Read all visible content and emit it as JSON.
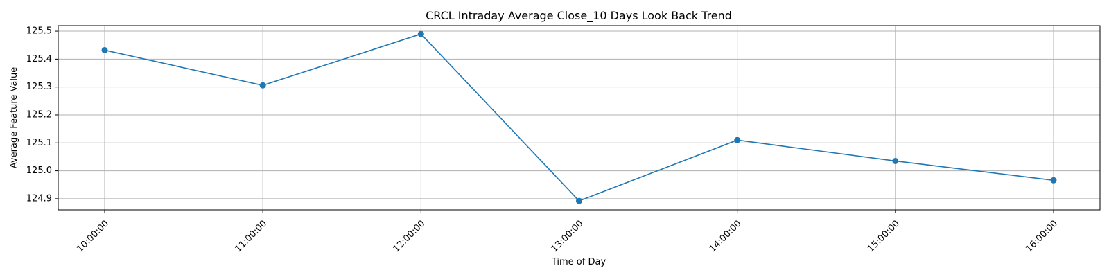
{
  "chart_data": {
    "type": "line",
    "title": "CRCL Intraday Average Close_10 Days Look Back Trend",
    "xlabel": "Time of Day",
    "ylabel": "Average Feature Value",
    "categories": [
      "10:00:00",
      "11:00:00",
      "12:00:00",
      "13:00:00",
      "14:00:00",
      "15:00:00",
      "16:00:00"
    ],
    "series": [
      {
        "values": [
          125.432,
          125.306,
          125.49,
          124.892,
          125.11,
          125.035,
          124.966
        ],
        "color": "#1f77b4",
        "marker": "circle"
      }
    ],
    "yticks": [
      "124.9",
      "125.0",
      "125.1",
      "125.2",
      "125.3",
      "125.4",
      "125.5"
    ],
    "ytick_values": [
      124.9,
      125.0,
      125.1,
      125.2,
      125.3,
      125.4,
      125.5
    ],
    "ylim": [
      124.86,
      125.52
    ],
    "grid": true,
    "legend": "none"
  }
}
